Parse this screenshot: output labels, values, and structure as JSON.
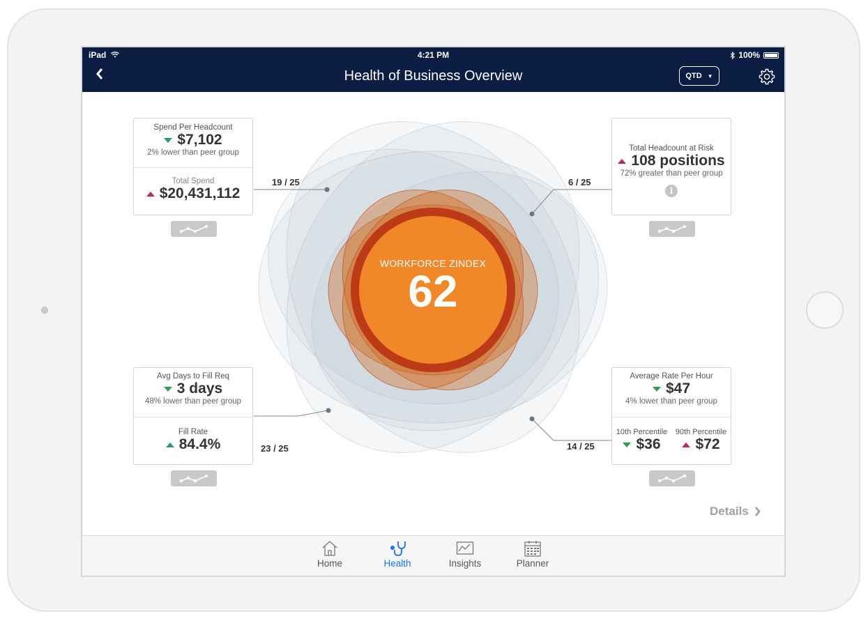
{
  "status_bar": {
    "carrier": "iPad",
    "time": "4:21 PM",
    "battery": "100%"
  },
  "header": {
    "back_icon": "chevron-left-icon",
    "title": "Health of Business Overview",
    "period": "QTD",
    "settings_icon": "gear-icon"
  },
  "center": {
    "label": "WORKFORCE ZINDEX",
    "value": "62"
  },
  "cards": {
    "spend": {
      "score": "19 / 25",
      "label": "Spend Per Headcount",
      "value": "$7,102",
      "trend": "down",
      "comparison": "2% lower than peer group",
      "total_label": "Total Spend",
      "total_value": "$20,431,112",
      "total_trend": "up"
    },
    "risk": {
      "score": "6 / 25",
      "label": "Total Headcount at Risk",
      "value": "108 positions",
      "trend": "up",
      "comparison": "72% greater than peer group",
      "info_icon": "info-icon"
    },
    "fill": {
      "score": "23 / 25",
      "label": "Avg Days to Fill Req",
      "value": "3 days",
      "trend": "down",
      "comparison": "48% lower than peer group",
      "rate_label": "Fill Rate",
      "rate_value": "84.4%",
      "rate_trend": "up"
    },
    "rate": {
      "score": "14 / 25",
      "label": "Average Rate Per Hour",
      "value": "$47",
      "trend": "down",
      "comparison": "4% lower than peer group",
      "p10_label": "10th Percentile",
      "p10_value": "$36",
      "p10_trend": "down",
      "p90_label": "90th Percentile",
      "p90_value": "$72",
      "p90_trend": "up"
    }
  },
  "trend_button_icon": "trend-line-icon",
  "details_link": "Details",
  "tabs": [
    {
      "label": "Home",
      "icon": "home-icon",
      "active": false
    },
    {
      "label": "Health",
      "icon": "stethoscope-icon",
      "active": true
    },
    {
      "label": "Insights",
      "icon": "chart-icon",
      "active": false
    },
    {
      "label": "Planner",
      "icon": "calendar-icon",
      "active": false
    }
  ],
  "colors": {
    "navbar": "#0c1d44",
    "accent_orange": "#f0882a",
    "active_tab": "#1a73e8",
    "trend_down": "#2e9b5c",
    "trend_up": "#b0305a"
  }
}
